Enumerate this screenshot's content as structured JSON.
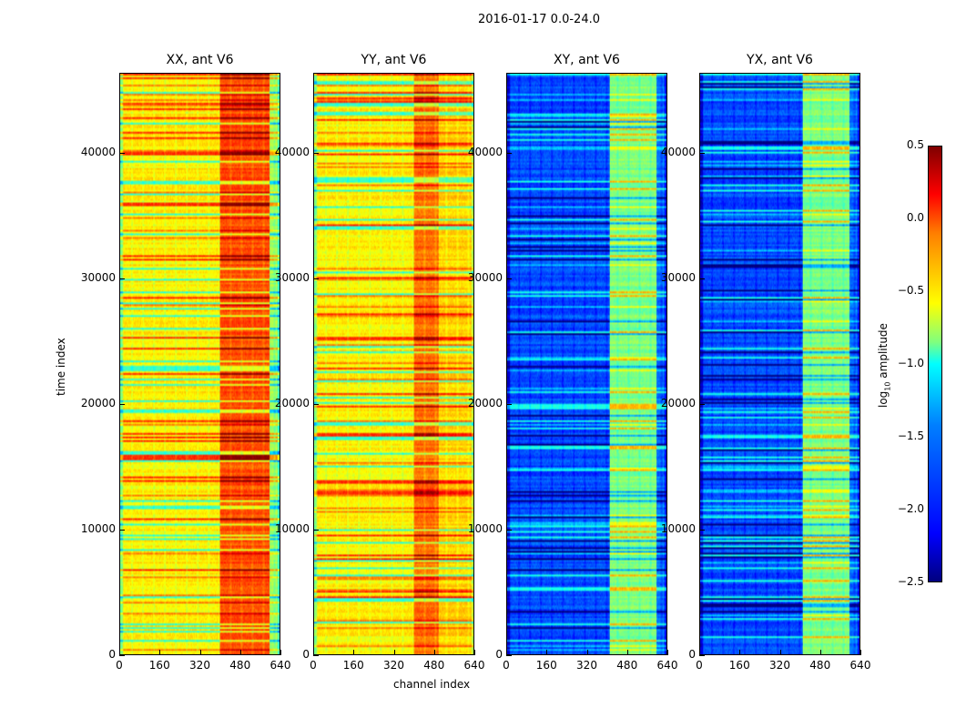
{
  "figure_title": "2016-01-17 0.0-24.0",
  "chart_data": [
    {
      "type": "heatmap",
      "title": "XX, ant V6",
      "xlabel": "",
      "ylabel": "time index",
      "xlim": [
        0,
        640
      ],
      "ylim": [
        0,
        46400
      ],
      "xticks": [
        "0",
        "160",
        "320",
        "480",
        "640"
      ],
      "yticks": [
        "0",
        "10000",
        "20000",
        "30000",
        "40000"
      ],
      "regions": [
        {
          "channels": [
            0,
            400
          ],
          "typical_log10_amplitude": -0.6
        },
        {
          "channels": [
            400,
            600
          ],
          "typical_log10_amplitude": -0.1
        },
        {
          "channels": [
            600,
            640
          ],
          "typical_log10_amplitude": -0.9
        }
      ]
    },
    {
      "type": "heatmap",
      "title": "YY, ant V6",
      "xlabel": "channel index",
      "ylabel": "",
      "xlim": [
        0,
        640
      ],
      "ylim": [
        0,
        46400
      ],
      "xticks": [
        "0",
        "160",
        "320",
        "480",
        "640"
      ],
      "yticks": [
        "0",
        "10000",
        "20000",
        "30000",
        "40000"
      ],
      "regions": [
        {
          "channels": [
            0,
            400
          ],
          "typical_log10_amplitude": -0.6
        },
        {
          "channels": [
            400,
            500
          ],
          "typical_log10_amplitude": -0.2
        },
        {
          "channels": [
            500,
            640
          ],
          "typical_log10_amplitude": -0.5
        }
      ]
    },
    {
      "type": "heatmap",
      "title": "XY, ant V6",
      "xlabel": "",
      "ylabel": "",
      "xlim": [
        0,
        640
      ],
      "ylim": [
        0,
        46400
      ],
      "xticks": [
        "0",
        "160",
        "320",
        "480",
        "640"
      ],
      "yticks": [
        "0",
        "10000",
        "20000",
        "30000",
        "40000"
      ],
      "regions": [
        {
          "channels": [
            0,
            410
          ],
          "typical_log10_amplitude": -1.9
        },
        {
          "channels": [
            410,
            600
          ],
          "typical_log10_amplitude": -1.0
        },
        {
          "channels": [
            600,
            640
          ],
          "typical_log10_amplitude": -1.8
        }
      ]
    },
    {
      "type": "heatmap",
      "title": "YX, ant V6",
      "xlabel": "",
      "ylabel": "",
      "xlim": [
        0,
        640
      ],
      "ylim": [
        0,
        46400
      ],
      "xticks": [
        "0",
        "160",
        "320",
        "480",
        "640"
      ],
      "yticks": [
        "0",
        "10000",
        "20000",
        "30000",
        "40000"
      ],
      "regions": [
        {
          "channels": [
            0,
            410
          ],
          "typical_log10_amplitude": -1.9
        },
        {
          "channels": [
            410,
            600
          ],
          "typical_log10_amplitude": -1.0
        },
        {
          "channels": [
            600,
            640
          ],
          "typical_log10_amplitude": -1.8
        }
      ]
    }
  ],
  "colorbar": {
    "label": "log10 amplitude",
    "label_base": "log",
    "label_sub": "10",
    "label_rest": " amplitude",
    "colormap": "jet",
    "range": [
      -2.5,
      0.5
    ],
    "ticks": [
      "0.5",
      "0.0",
      "−0.5",
      "−1.0",
      "−1.5",
      "−2.0",
      "−2.5"
    ]
  }
}
